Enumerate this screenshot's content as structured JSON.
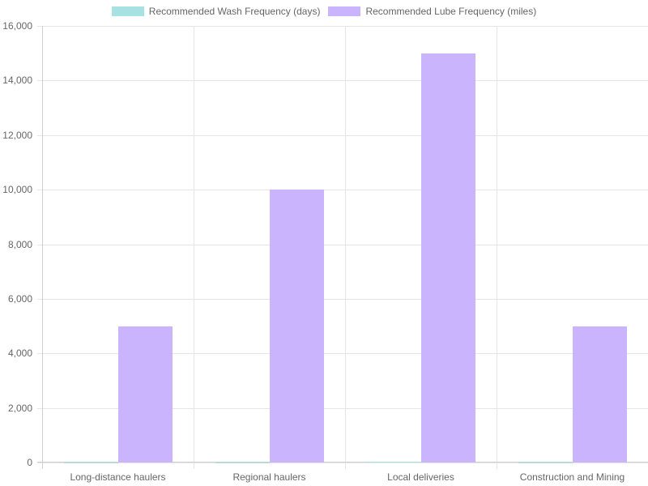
{
  "chart_data": {
    "type": "bar",
    "title": "",
    "categories": [
      "Long-distance haulers",
      "Regional haulers",
      "Local deliveries",
      "Construction and Mining"
    ],
    "series": [
      {
        "name": "Recommended Wash Frequency (days)",
        "values": [
          7,
          14,
          30,
          3
        ],
        "color": "#a8e1e1"
      },
      {
        "name": "Recommended Lube Frequency (miles)",
        "values": [
          5000,
          10000,
          15000,
          5000
        ],
        "color": "#cbb4fe"
      }
    ],
    "xlabel": "",
    "ylabel": "",
    "ylim": [
      0,
      16000
    ],
    "yticks": [
      "0",
      "2,000",
      "4,000",
      "6,000",
      "8,000",
      "10,000",
      "12,000",
      "14,000",
      "16,000"
    ],
    "grid": true,
    "legend_position": "top"
  },
  "legend": {
    "items": [
      {
        "label": "Recommended Wash Frequency (days)",
        "color": "#a8e1e1"
      },
      {
        "label": "Recommended Lube Frequency (miles)",
        "color": "#cbb4fe"
      }
    ]
  }
}
